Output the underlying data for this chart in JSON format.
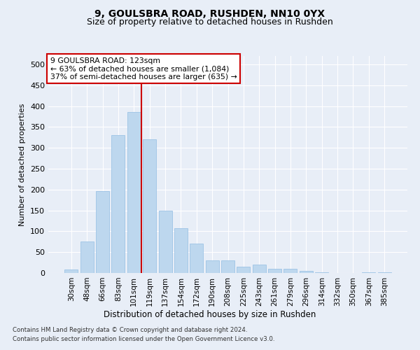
{
  "title1": "9, GOULSBRA ROAD, RUSHDEN, NN10 0YX",
  "title2": "Size of property relative to detached houses in Rushden",
  "xlabel": "Distribution of detached houses by size in Rushden",
  "ylabel": "Number of detached properties",
  "bar_labels": [
    "30sqm",
    "48sqm",
    "66sqm",
    "83sqm",
    "101sqm",
    "119sqm",
    "137sqm",
    "154sqm",
    "172sqm",
    "190sqm",
    "208sqm",
    "225sqm",
    "243sqm",
    "261sqm",
    "279sqm",
    "296sqm",
    "314sqm",
    "332sqm",
    "350sqm",
    "367sqm",
    "385sqm"
  ],
  "bar_values": [
    8,
    75,
    197,
    330,
    385,
    320,
    150,
    108,
    70,
    30,
    30,
    15,
    20,
    10,
    10,
    5,
    2,
    0,
    0,
    1,
    1
  ],
  "bar_color": "#BDD7EE",
  "bar_edgecolor": "#9DC3E6",
  "vline_index": 5,
  "vline_color": "#CC0000",
  "annotation_line1": "9 GOULSBRA ROAD: 123sqm",
  "annotation_line2": "← 63% of detached houses are smaller (1,084)",
  "annotation_line3": "37% of semi-detached houses are larger (635) →",
  "annotation_box_facecolor": "#FFFFFF",
  "annotation_box_edgecolor": "#CC0000",
  "ylim": [
    0,
    520
  ],
  "yticks": [
    0,
    50,
    100,
    150,
    200,
    250,
    300,
    350,
    400,
    450,
    500
  ],
  "footnote1": "Contains HM Land Registry data © Crown copyright and database right 2024.",
  "footnote2": "Contains public sector information licensed under the Open Government Licence v3.0.",
  "bg_color": "#E8EEF7",
  "plot_bg_color": "#E8EEF7",
  "title1_fontsize": 10,
  "title2_fontsize": 9
}
